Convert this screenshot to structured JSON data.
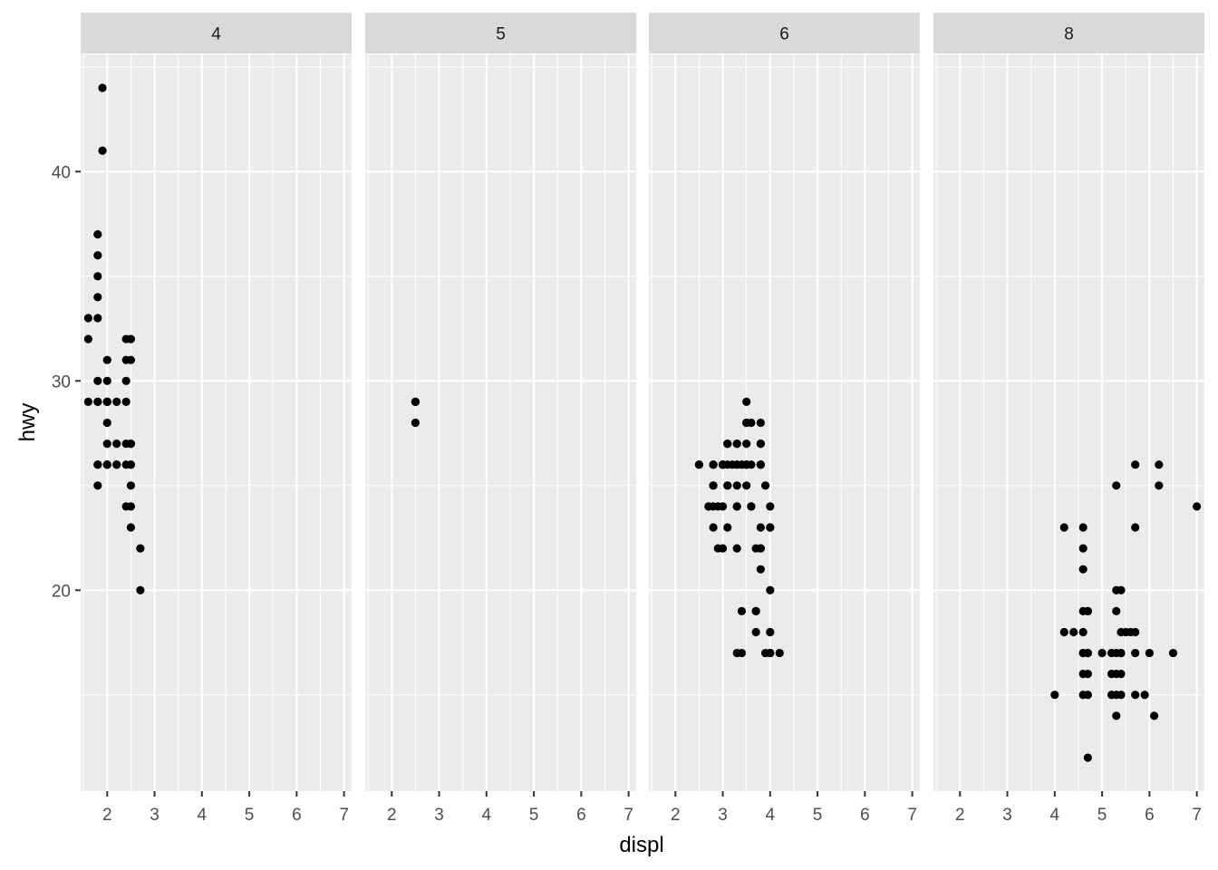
{
  "chart_data": {
    "type": "scatter",
    "facet_by": "cyl",
    "xlabel": "displ",
    "ylabel": "hwy",
    "xlim": [
      1.44,
      7.16
    ],
    "ylim": [
      10.4,
      45.6
    ],
    "x_ticks": [
      2,
      3,
      4,
      5,
      6,
      7
    ],
    "y_ticks": [
      20,
      30,
      40
    ],
    "grid": true,
    "point_color": "#000000",
    "panel_background": "#EBEBEB",
    "strip_background": "#D9D9D9",
    "panels": [
      {
        "label": "4",
        "points": [
          [
            1.8,
            29
          ],
          [
            1.8,
            29
          ],
          [
            2.0,
            31
          ],
          [
            2.0,
            30
          ],
          [
            1.8,
            26
          ],
          [
            1.8,
            25
          ],
          [
            2.0,
            28
          ],
          [
            2.0,
            27
          ],
          [
            2.4,
            30
          ],
          [
            2.4,
            26
          ],
          [
            2.4,
            29
          ],
          [
            2.4,
            24
          ],
          [
            2.2,
            26
          ],
          [
            2.2,
            27
          ],
          [
            2.4,
            31
          ],
          [
            2.4,
            32
          ],
          [
            1.8,
            26
          ],
          [
            1.8,
            30
          ],
          [
            1.8,
            37
          ],
          [
            1.8,
            35
          ],
          [
            1.8,
            33
          ],
          [
            1.9,
            44
          ],
          [
            1.9,
            41
          ],
          [
            2.0,
            29
          ],
          [
            2.0,
            26
          ],
          [
            2.0,
            29
          ],
          [
            2.0,
            29
          ],
          [
            2.0,
            29
          ],
          [
            2.5,
            27
          ],
          [
            2.5,
            25
          ],
          [
            2.5,
            24
          ],
          [
            2.5,
            23
          ],
          [
            2.5,
            26
          ],
          [
            2.5,
            26
          ],
          [
            2.5,
            32
          ],
          [
            2.5,
            27
          ],
          [
            2.5,
            31
          ],
          [
            2.7,
            20
          ],
          [
            2.7,
            22
          ],
          [
            1.6,
            33
          ],
          [
            1.6,
            32
          ],
          [
            1.6,
            29
          ],
          [
            1.8,
            34
          ],
          [
            1.8,
            36
          ],
          [
            2.0,
            26
          ],
          [
            2.0,
            26
          ],
          [
            2.4,
            27
          ],
          [
            2.2,
            29
          ],
          [
            2.2,
            26
          ]
        ]
      },
      {
        "label": "5",
        "points": [
          [
            2.5,
            29
          ],
          [
            2.5,
            29
          ],
          [
            2.5,
            28
          ],
          [
            2.5,
            29
          ]
        ]
      },
      {
        "label": "6",
        "points": [
          [
            2.8,
            26
          ],
          [
            2.8,
            26
          ],
          [
            3.1,
            27
          ],
          [
            3.1,
            25
          ],
          [
            2.8,
            25
          ],
          [
            3.1,
            25
          ],
          [
            3.1,
            27
          ],
          [
            4.2,
            17
          ],
          [
            3.8,
            27
          ],
          [
            3.8,
            26
          ],
          [
            4.0,
            23
          ],
          [
            4.0,
            24
          ],
          [
            3.3,
            24
          ],
          [
            3.8,
            22
          ],
          [
            3.8,
            22
          ],
          [
            3.8,
            21
          ],
          [
            4.0,
            20
          ],
          [
            3.7,
            19
          ],
          [
            3.7,
            19
          ],
          [
            4.0,
            17
          ],
          [
            3.9,
            17
          ],
          [
            4.0,
            18
          ],
          [
            4.0,
            17
          ],
          [
            3.0,
            26
          ],
          [
            3.3,
            26
          ],
          [
            3.3,
            26
          ],
          [
            3.5,
            26
          ],
          [
            3.5,
            28
          ],
          [
            3.5,
            29
          ],
          [
            3.5,
            26
          ],
          [
            3.0,
            22
          ],
          [
            3.8,
            23
          ],
          [
            3.5,
            26
          ],
          [
            3.7,
            18
          ],
          [
            3.3,
            17
          ],
          [
            3.4,
            17
          ],
          [
            3.4,
            19
          ],
          [
            3.0,
            26
          ],
          [
            3.3,
            27
          ],
          [
            3.5,
            28
          ],
          [
            3.5,
            25
          ],
          [
            2.8,
            23
          ],
          [
            2.7,
            24
          ],
          [
            2.7,
            24
          ],
          [
            3.5,
            27
          ],
          [
            3.6,
            24
          ],
          [
            3.6,
            26
          ],
          [
            3.6,
            28
          ],
          [
            3.8,
            28
          ],
          [
            3.9,
            25
          ],
          [
            3.5,
            26
          ],
          [
            2.5,
            26
          ],
          [
            3.0,
            26
          ],
          [
            2.8,
            25
          ],
          [
            3.1,
            26
          ],
          [
            3.2,
            26
          ],
          [
            3.3,
            27
          ],
          [
            3.4,
            26
          ],
          [
            3.8,
            27
          ],
          [
            3.8,
            26
          ],
          [
            4.0,
            23
          ],
          [
            3.7,
            22
          ],
          [
            4.0,
            18
          ],
          [
            2.9,
            22
          ],
          [
            2.5,
            26
          ],
          [
            3.0,
            26
          ],
          [
            2.8,
            24
          ],
          [
            3.3,
            24
          ],
          [
            3.0,
            26
          ],
          [
            2.9,
            24
          ],
          [
            3.0,
            24
          ],
          [
            3.3,
            22
          ],
          [
            2.8,
            26
          ],
          [
            3.1,
            23
          ],
          [
            3.3,
            25
          ],
          [
            3.6,
            24
          ],
          [
            3.8,
            26
          ]
        ]
      },
      {
        "label": "8",
        "points": [
          [
            4.2,
            23
          ],
          [
            4.2,
            18
          ],
          [
            4.4,
            18
          ],
          [
            4.6,
            23
          ],
          [
            4.6,
            22
          ],
          [
            4.6,
            21
          ],
          [
            4.6,
            19
          ],
          [
            4.6,
            17
          ],
          [
            4.6,
            16
          ],
          [
            4.6,
            15
          ],
          [
            4.7,
            19
          ],
          [
            4.7,
            17
          ],
          [
            4.7,
            16
          ],
          [
            4.7,
            15
          ],
          [
            4.7,
            12
          ],
          [
            4.7,
            19
          ],
          [
            4.0,
            15
          ],
          [
            5.0,
            17
          ],
          [
            5.2,
            17
          ],
          [
            5.2,
            16
          ],
          [
            5.2,
            15
          ],
          [
            5.3,
            25
          ],
          [
            5.3,
            20
          ],
          [
            5.3,
            19
          ],
          [
            5.3,
            17
          ],
          [
            5.3,
            16
          ],
          [
            5.3,
            15
          ],
          [
            5.3,
            14
          ],
          [
            5.4,
            20
          ],
          [
            5.4,
            18
          ],
          [
            5.4,
            17
          ],
          [
            5.4,
            16
          ],
          [
            5.4,
            15
          ],
          [
            5.5,
            18
          ],
          [
            5.6,
            18
          ],
          [
            5.7,
            26
          ],
          [
            5.7,
            23
          ],
          [
            5.7,
            18
          ],
          [
            5.7,
            17
          ],
          [
            5.7,
            15
          ],
          [
            5.9,
            15
          ],
          [
            6.0,
            17
          ],
          [
            6.1,
            14
          ],
          [
            6.2,
            26
          ],
          [
            6.2,
            25
          ],
          [
            6.5,
            17
          ],
          [
            7.0,
            24
          ],
          [
            4.6,
            18
          ],
          [
            4.7,
            17
          ],
          [
            5.4,
            17
          ],
          [
            4.6,
            17
          ]
        ]
      }
    ]
  }
}
